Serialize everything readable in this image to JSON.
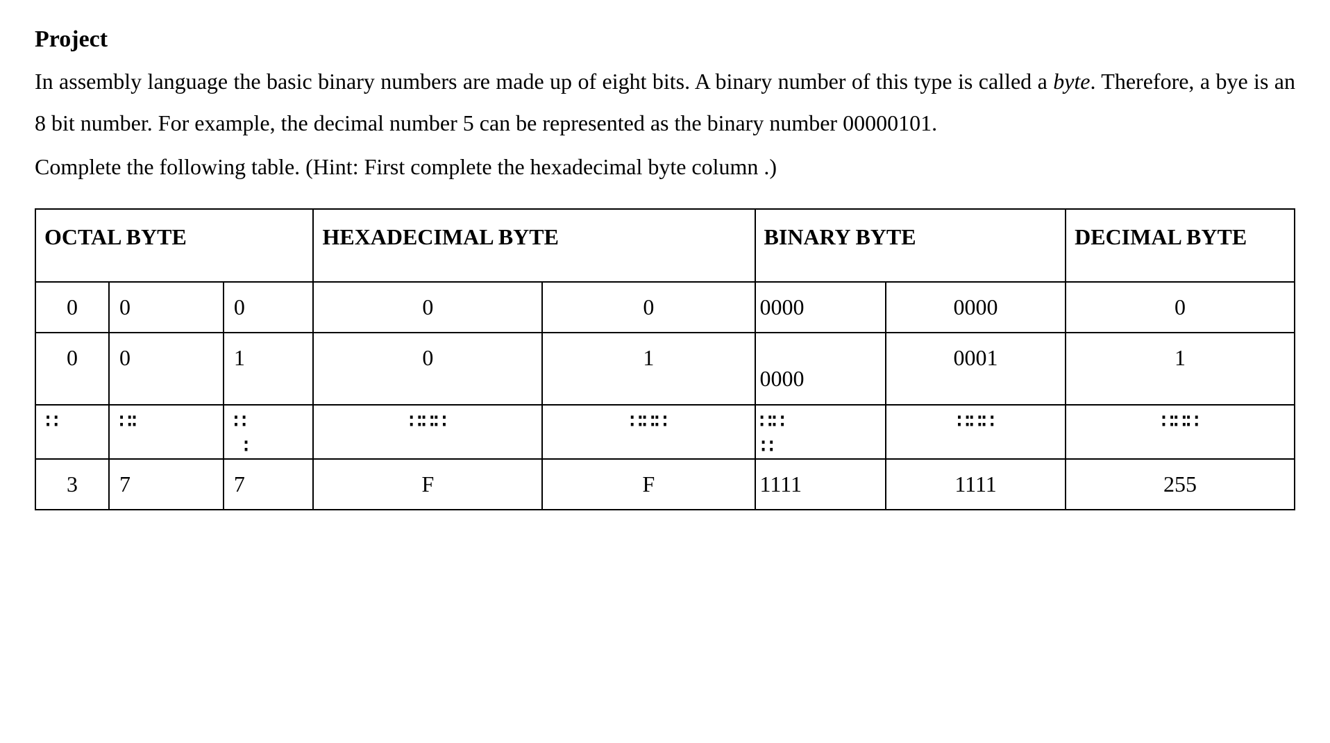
{
  "heading": "Project",
  "para1_a": "In assembly language the basic binary numbers are made up of eight bits. A binary number of this type is called a ",
  "para1_b": "byte",
  "para1_c": ". Therefore, a bye is an 8 bit number. For example, the decimal number 5 can be represented as the binary number 00000101.",
  "para2": "Complete the following table. (Hint: First complete the hexadecimal byte column .)",
  "table": {
    "headers": {
      "octal": "OCTAL BYTE",
      "hex": "HEXADECIMAL BYTE",
      "binary": "BINARY BYTE",
      "decimal": "DECIMAL  BYTE"
    },
    "row1": {
      "oct1": "0",
      "oct2": "0",
      "oct3": "0",
      "hex1": "0",
      "hex2": "0",
      "bin1": "0000",
      "bin2": "0000",
      "dec": "0"
    },
    "row2": {
      "oct1": "0",
      "oct2": "0",
      "oct3": "1",
      "hex1": "0",
      "hex2": "1",
      "bin1_bottom": "0000",
      "bin2": "0001",
      "dec": "1"
    },
    "row3": {
      "dots_sm": "∷",
      "dots_sm2": "∷∶",
      "dots_lg": "∷∷∷",
      "dots_md": "∷∷",
      "extra_colon": "∶",
      "extra_bin": "∷"
    },
    "row4": {
      "oct1": "3",
      "oct2": "7",
      "oct3": "7",
      "hex1": "F",
      "hex2": "F",
      "bin1": "1111",
      "bin2": "1111",
      "dec": "255"
    }
  }
}
